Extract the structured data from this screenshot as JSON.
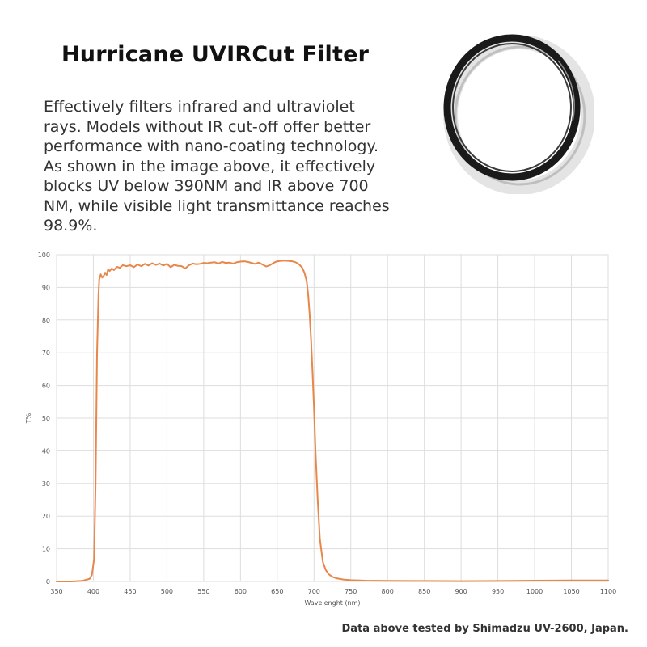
{
  "header": {
    "title": "Hurricane UVIRCut Filter",
    "description": "Effectively filters infrared and ultraviolet rays. Models without IR cut-off offer better performance with nano-coating technology. As shown in the image above, it effectively blocks UV below 390NM and IR above 700 NM, while visible light transmittance reaches 98.9%."
  },
  "footer": {
    "note": "Data above tested by Shimadzu UV-2600, Japan."
  },
  "colors": {
    "curve": "#e8874a",
    "grid": "#dddddd",
    "ring_dark": "#1a1a1a",
    "ring_silver": "#d4d4d4"
  },
  "product_image": {
    "icon": "uv-filter-ring-icon"
  },
  "chart_data": {
    "type": "line",
    "title": "",
    "xlabel": "Wavelenght (nm)",
    "ylabel": "T%",
    "xlim": [
      350,
      1100
    ],
    "ylim": [
      0,
      100
    ],
    "x_ticks": [
      350,
      400,
      450,
      500,
      550,
      600,
      650,
      700,
      750,
      800,
      850,
      900,
      950,
      1000,
      1050,
      1100
    ],
    "y_ticks": [
      0,
      10,
      20,
      30,
      40,
      50,
      60,
      70,
      80,
      90,
      100
    ],
    "grid": true,
    "legend": "none",
    "series": [
      {
        "x": [
          350,
          370,
          385,
          395,
          398,
          401,
          403,
          405,
          407,
          408,
          410,
          412,
          414,
          416,
          418,
          420,
          422,
          425,
          428,
          432,
          436,
          440,
          445,
          450,
          455,
          460,
          465,
          470,
          475,
          480,
          485,
          490,
          495,
          500,
          505,
          510,
          515,
          520,
          525,
          530,
          535,
          540,
          545,
          550,
          555,
          560,
          565,
          570,
          575,
          580,
          585,
          590,
          595,
          600,
          605,
          610,
          615,
          620,
          625,
          630,
          635,
          640,
          645,
          650,
          655,
          660,
          665,
          670,
          675,
          680,
          684,
          687,
          690,
          692,
          694,
          696,
          698,
          700,
          702,
          705,
          708,
          712,
          716,
          720,
          725,
          730,
          740,
          750,
          770,
          800,
          850,
          900,
          950,
          1000,
          1050,
          1100
        ],
        "y": [
          0,
          0,
          0.2,
          0.8,
          2,
          7,
          30,
          70,
          88,
          92.5,
          94,
          93,
          93.5,
          94.5,
          93.8,
          95.5,
          95,
          95.8,
          95.3,
          96.3,
          96,
          96.8,
          96.5,
          96.8,
          96.2,
          97,
          96.5,
          97.2,
          96.7,
          97.4,
          96.9,
          97.3,
          96.7,
          97.2,
          96.2,
          96.9,
          96.6,
          96.5,
          95.8,
          96.8,
          97.3,
          97.1,
          97.2,
          97.5,
          97.4,
          97.6,
          97.7,
          97.3,
          97.8,
          97.5,
          97.6,
          97.3,
          97.7,
          97.9,
          98,
          97.8,
          97.5,
          97.2,
          97.6,
          97,
          96.4,
          96.8,
          97.5,
          98,
          98.1,
          98.2,
          98.1,
          98,
          97.7,
          97,
          96,
          94.5,
          92,
          88,
          82,
          74,
          64,
          53,
          40,
          25,
          13,
          6,
          3.5,
          2.2,
          1.4,
          1,
          0.6,
          0.4,
          0.25,
          0.2,
          0.15,
          0.1,
          0.15,
          0.25,
          0.3,
          0.3
        ]
      }
    ]
  }
}
